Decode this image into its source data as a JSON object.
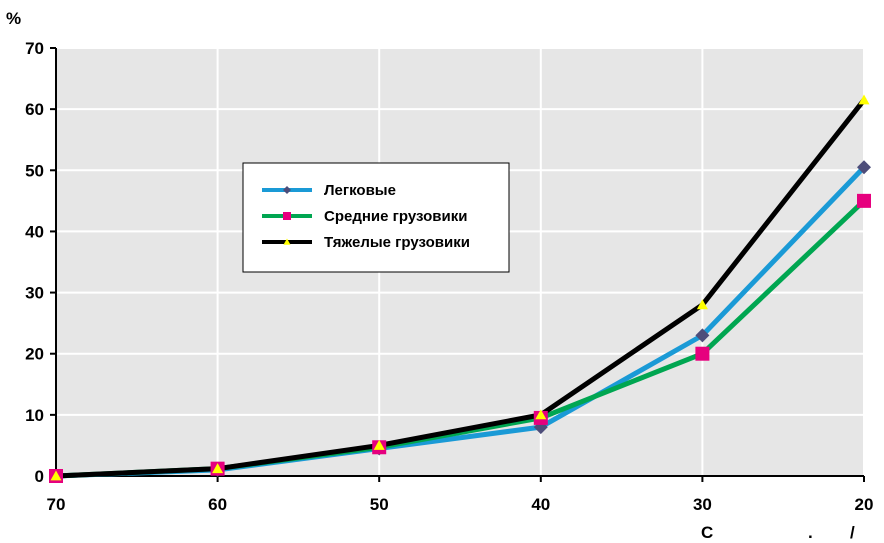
{
  "chart_data": {
    "type": "line",
    "y_unit_label": "%",
    "x_axis_note": [
      "С",
      ".",
      "/"
    ],
    "categories": [
      "70",
      "60",
      "50",
      "40",
      "30",
      "20"
    ],
    "x": [
      70,
      60,
      50,
      40,
      30,
      20
    ],
    "ylim": [
      0,
      70
    ],
    "yticks": [
      "0",
      "10",
      "20",
      "30",
      "40",
      "50",
      "60",
      "70"
    ],
    "grid": true,
    "legend_position": "center-left",
    "series": [
      {
        "name": "Легковые",
        "values": [
          0,
          1,
          4.5,
          8,
          23,
          50.5
        ],
        "color": "#1a9ad6",
        "marker": "diamond",
        "marker_color": "#4d4d7a"
      },
      {
        "name": "Средние грузовики",
        "values": [
          0,
          1.2,
          4.7,
          9.5,
          20,
          45
        ],
        "color": "#00a651",
        "marker": "square",
        "marker_color": "#e6007e"
      },
      {
        "name": "Тяжелые грузовики",
        "values": [
          0,
          1.2,
          5,
          10,
          28,
          61.5
        ],
        "color": "#000000",
        "marker": "triangle",
        "marker_color": "#ffff00"
      }
    ]
  }
}
